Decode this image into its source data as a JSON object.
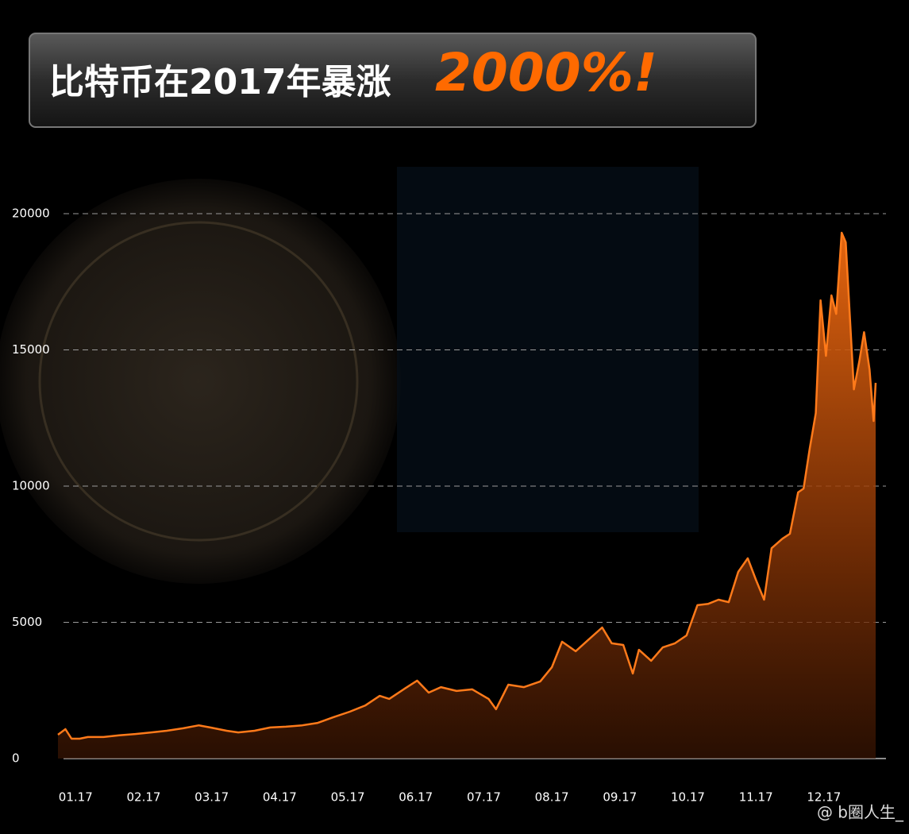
{
  "chart_data": {
    "type": "area",
    "title": "比特币在2017年暴涨",
    "title_highlight": "2000%!",
    "watermark": "@ b圈人生_",
    "color": "#ff7a1a",
    "grid": true,
    "ylim": [
      0,
      20000
    ],
    "yticks": [
      0,
      5000,
      10000,
      15000,
      20000
    ],
    "xlim": [
      0.74,
      12.76
    ],
    "xticks": [
      {
        "value": 1,
        "label": "01.17"
      },
      {
        "value": 2,
        "label": "02.17"
      },
      {
        "value": 3,
        "label": "03.17"
      },
      {
        "value": 4,
        "label": "04.17"
      },
      {
        "value": 5,
        "label": "05.17"
      },
      {
        "value": 6,
        "label": "06.17"
      },
      {
        "value": 7,
        "label": "07.17"
      },
      {
        "value": 8,
        "label": "08.17"
      },
      {
        "value": 9,
        "label": "09.17"
      },
      {
        "value": 10,
        "label": "10.17"
      },
      {
        "value": 11,
        "label": "11.17"
      },
      {
        "value": 12,
        "label": "12.17"
      }
    ],
    "x": [
      0.74,
      0.85,
      0.94,
      1.06,
      1.18,
      1.41,
      1.64,
      1.88,
      2.11,
      2.34,
      2.58,
      2.81,
      2.98,
      3.22,
      3.39,
      3.63,
      3.86,
      4.09,
      4.33,
      4.56,
      4.79,
      5.03,
      5.26,
      5.47,
      5.61,
      5.84,
      6.02,
      6.19,
      6.37,
      6.6,
      6.83,
      7.07,
      7.18,
      7.36,
      7.59,
      7.83,
      8.0,
      8.15,
      8.35,
      8.53,
      8.74,
      8.88,
      9.05,
      9.19,
      9.28,
      9.46,
      9.63,
      9.81,
      9.98,
      10.14,
      10.3,
      10.45,
      10.6,
      10.74,
      10.88,
      11.0,
      11.12,
      11.23,
      11.39,
      11.5,
      11.62,
      11.7,
      11.79,
      11.88,
      11.95,
      12.03,
      12.11,
      12.18,
      12.26,
      12.32,
      12.44,
      12.52,
      12.59,
      12.67,
      12.73,
      12.76
    ],
    "values": [
      875,
      1080,
      730,
      730,
      790,
      790,
      850,
      900,
      960,
      1020,
      1110,
      1220,
      1140,
      1020,
      960,
      1020,
      1140,
      1170,
      1220,
      1310,
      1520,
      1720,
      1950,
      2300,
      2190,
      2570,
      2860,
      2420,
      2620,
      2480,
      2540,
      2190,
      1810,
      2710,
      2620,
      2830,
      3350,
      4290,
      3940,
      4340,
      4810,
      4230,
      4170,
      3120,
      3990,
      3590,
      4080,
      4230,
      4520,
      5630,
      5680,
      5830,
      5740,
      6850,
      7350,
      6560,
      5830,
      7720,
      8070,
      8250,
      9770,
      9910,
      11370,
      12680,
      16820,
      14780,
      17000,
      16320,
      19300,
      18950,
      13550,
      14580,
      15650,
      14280,
      12390,
      13790
    ]
  }
}
